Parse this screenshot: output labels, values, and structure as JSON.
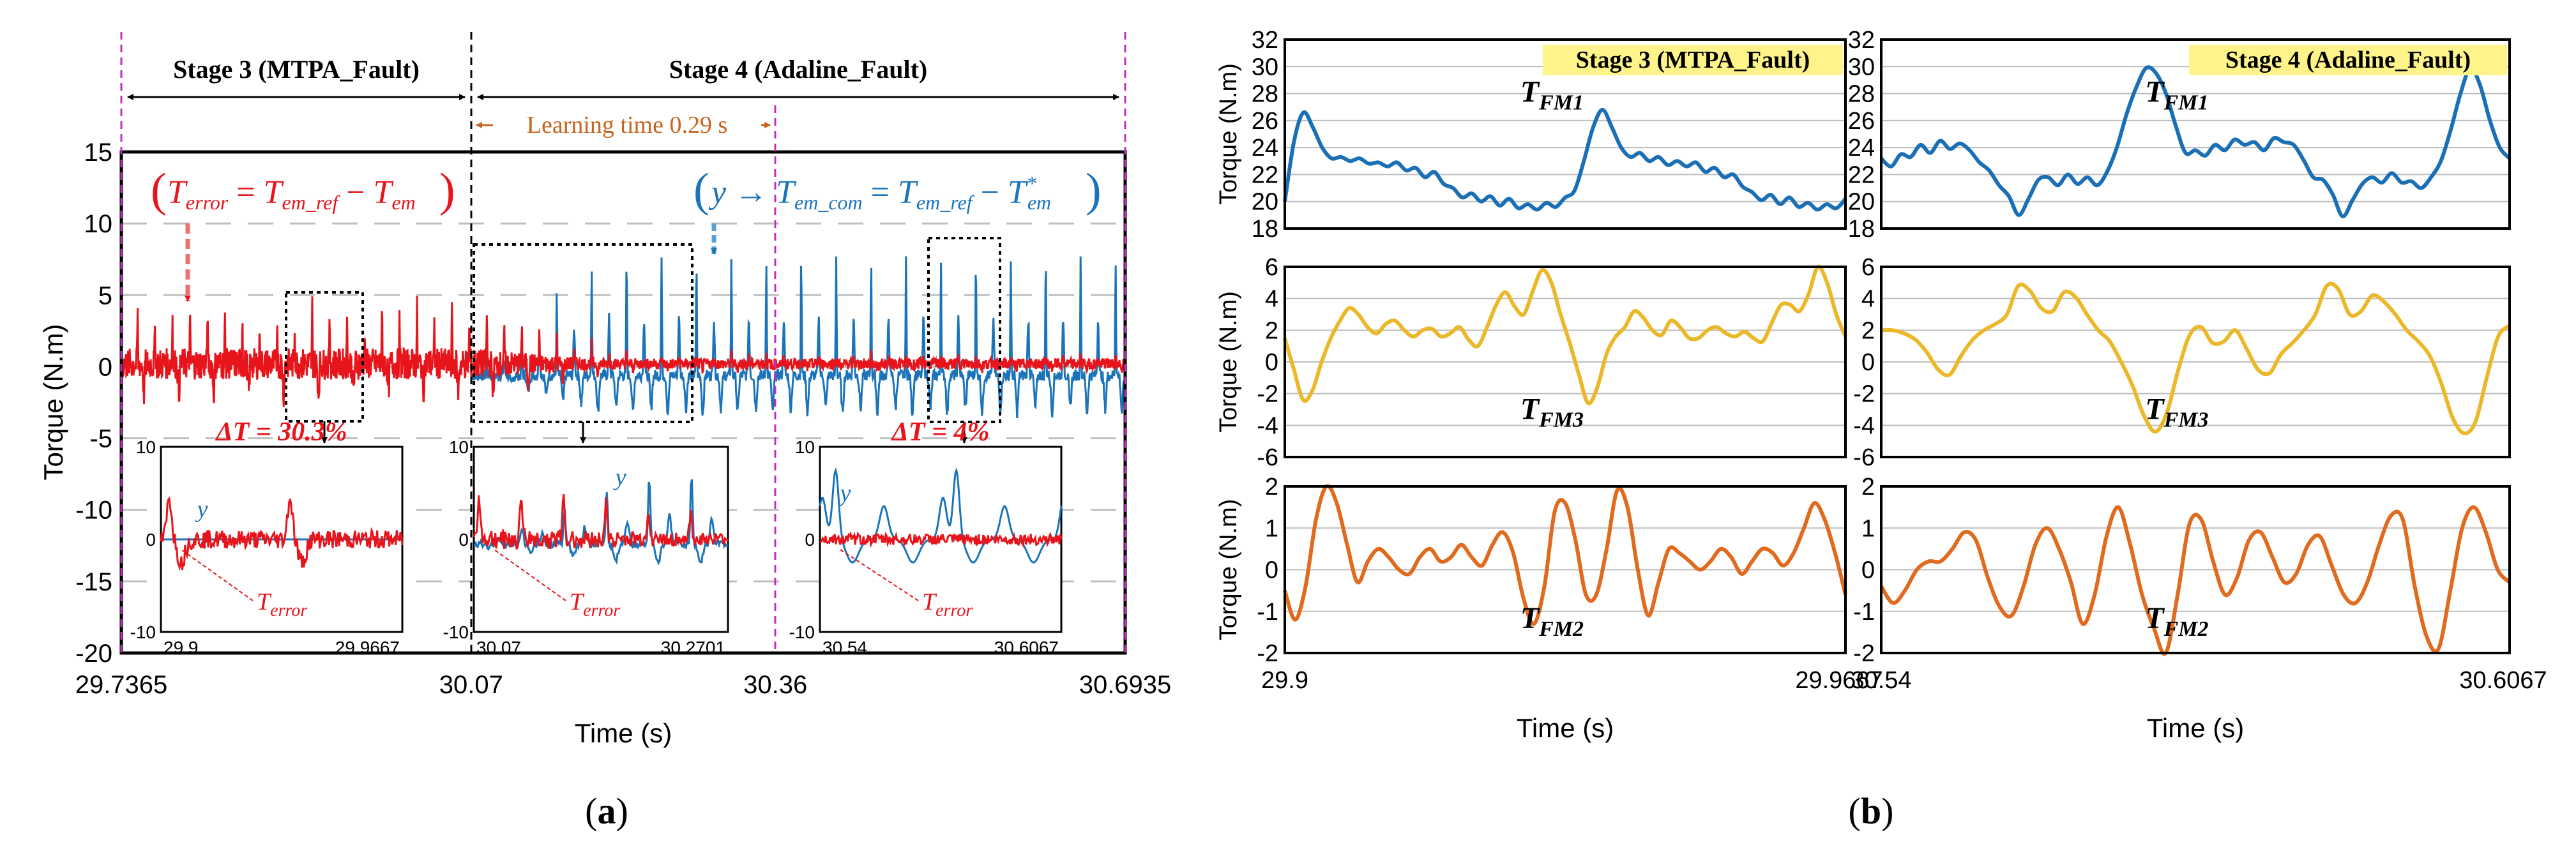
{
  "panel_labels": {
    "a": "(a)",
    "b": "(b)"
  },
  "colors": {
    "error": "#e8141b",
    "adaline": "#1b74b9",
    "fm1": "#1b6fb5",
    "fm3": "#ebb82a",
    "fm2": "#e06a1e",
    "stage_line": "#c030c0",
    "learning": "#c8641e",
    "highlight": "#fef48a"
  },
  "chart_data": [
    {
      "type": "line",
      "panel": "a",
      "ylabel": "Torque (N.m)",
      "xlabel": "Time (s)",
      "ylim": [
        -20,
        15
      ],
      "yticks": [
        "15",
        "10",
        "5",
        "0",
        "-5",
        "-10",
        "-15",
        "-20"
      ],
      "xticks": [
        {
          "t": 29.7365,
          "label": "29.7365"
        },
        {
          "t": 30.07,
          "label": "30.07"
        },
        {
          "t": 30.36,
          "label": "30.36"
        },
        {
          "t": 30.6935,
          "label": "30.6935"
        }
      ],
      "xlim": [
        29.7365,
        30.6935
      ],
      "stages": [
        {
          "label": "Stage 3 (MTPA_Fault)",
          "start": 29.7365,
          "end": 30.07
        },
        {
          "label": "Stage 4 (Adaline_Fault)",
          "start": 30.07,
          "end": 30.6935
        }
      ],
      "learning": {
        "label": "Learning time 0.29 s",
        "start": 30.07,
        "end": 30.36
      },
      "series": [
        {
          "name": "T_error",
          "peak": 4.7,
          "trough": -2.5,
          "period_s": 0.0333
        },
        {
          "name": "y",
          "peak": 8.4,
          "trough": -3.5,
          "period_s": 0.0333
        }
      ],
      "equation_error": {
        "lhs": "T",
        "lhs_sub": "error",
        "mid": "T",
        "mid_sub": "em_ref",
        "rhs": "T",
        "rhs_sub": "em"
      },
      "equation_y": {
        "y": "y",
        "a": "T",
        "a_sub": "em_com",
        "b": "T",
        "b_sub": "em_ref",
        "c": "T",
        "c_sub": "em",
        "c_sup": "*"
      },
      "insets": [
        {
          "x_range": [
            "29.9",
            "29.9667"
          ],
          "ylim": [
            "10",
            "0",
            "-10"
          ],
          "delta": "ΔT = 30.3%",
          "label_y": "y",
          "label_err": "T",
          "label_err_sub": "error"
        },
        {
          "x_range": [
            "30.07",
            "30.2701"
          ],
          "ylim": [
            "10",
            "0",
            "-10"
          ],
          "label_y": "y",
          "label_err": "T",
          "label_err_sub": "error"
        },
        {
          "x_range": [
            "30.54",
            "30.6067"
          ],
          "ylim": [
            "10",
            "0",
            "-10"
          ],
          "delta": "ΔT = 4%",
          "label_y": "y",
          "label_err": "T",
          "label_err_sub": "error"
        }
      ]
    },
    {
      "type": "line",
      "panel": "b",
      "xlabel": "Time (s)",
      "columns": [
        {
          "title": "Stage 3 (MTPA_Fault)",
          "x_start": "29.9",
          "x_end": "29.9667"
        },
        {
          "title": "Stage 4 (Adaline_Fault)",
          "x_start": "30.54",
          "x_end": "30.6067"
        }
      ],
      "rows": [
        {
          "name": "T",
          "sub": "FM1",
          "ylabel": "Torque (N.m)",
          "ylim": [
            18,
            32
          ],
          "yticks": [
            "32",
            "30",
            "28",
            "26",
            "24",
            "22",
            "20",
            "18"
          ]
        },
        {
          "name": "T",
          "sub": "FM3",
          "ylabel": "Torque (N.m)",
          "ylim": [
            -6,
            6
          ],
          "yticks": [
            "6",
            "4",
            "2",
            "0",
            "-2",
            "-4",
            "-6"
          ]
        },
        {
          "name": "T",
          "sub": "FM2",
          "ylabel": "Torque (N.m)",
          "ylim": [
            -2,
            2
          ],
          "yticks": [
            "2",
            "1",
            "0",
            "-1",
            "-2"
          ]
        }
      ],
      "series": {
        "stage3": {
          "FM1": [
            20,
            24.5,
            26.6,
            25.5,
            24,
            23.2,
            23.3,
            23,
            23.2,
            22.8,
            22.9,
            22.6,
            22.9,
            22.3,
            22.5,
            21.8,
            22.2,
            21.3,
            21,
            20.3,
            20.6,
            20,
            20.4,
            19.7,
            20.2,
            19.5,
            19.8,
            19.4,
            19.9,
            19.6,
            20.3,
            20.8,
            23,
            25.5,
            26.8,
            25.5,
            24,
            23.3,
            23.6,
            23,
            23.3,
            22.7,
            23,
            22.6,
            22.9,
            22.2,
            22.5,
            21.8,
            22,
            21.1,
            20.7,
            20.1,
            20.5,
            19.8,
            20.3,
            19.6,
            19.9,
            19.4,
            19.8,
            19.5,
            20.2
          ],
          "FM3": [
            1.5,
            -0.5,
            -2.4,
            -1.8,
            0,
            1.5,
            2.6,
            3.4,
            3,
            2.2,
            1.8,
            2.4,
            2.6,
            2,
            1.6,
            2,
            2.1,
            1.6,
            1.8,
            2.2,
            1.4,
            1,
            2.2,
            3.6,
            4.4,
            3.5,
            3,
            4.5,
            5.8,
            5,
            3,
            1.2,
            -0.8,
            -2.6,
            -1.6,
            0.5,
            1.6,
            2.2,
            3.2,
            2.8,
            2,
            1.7,
            2.6,
            2.2,
            1.5,
            1.5,
            2,
            2.2,
            1.8,
            1.6,
            1.9,
            1.5,
            1.3,
            2.5,
            3.6,
            3.6,
            3.2,
            4.3,
            6,
            5,
            3,
            1.6
          ],
          "FM2": [
            -0.5,
            -1.2,
            -0.4,
            1.2,
            2,
            1.6,
            0.6,
            -0.3,
            0.2,
            0.5,
            0.3,
            0,
            -0.1,
            0.3,
            0.5,
            0.2,
            0.3,
            0.6,
            0.3,
            0.1,
            0.6,
            0.9,
            0.4,
            -0.7,
            -1.3,
            -0.4,
            1.4,
            1.6,
            0.7,
            -0.6,
            -0.6,
            0.5,
            1.9,
            1.5,
            0,
            -1.1,
            -0.3,
            0.5,
            0.4,
            0.2,
            0,
            0.2,
            0.5,
            0.3,
            -0.1,
            0.2,
            0.5,
            0.4,
            0.1,
            0.4,
            1,
            1.6,
            1.2,
            0.4,
            -0.6
          ]
        },
        "stage4": {
          "FM1": [
            23.2,
            22.6,
            23.5,
            23.3,
            24.2,
            23.6,
            24.5,
            23.9,
            24.3,
            23.8,
            22.9,
            22.3,
            21.2,
            20.4,
            19,
            20.2,
            21.6,
            21.8,
            21.2,
            22,
            21.3,
            21.8,
            21.2,
            22.2,
            24,
            26.5,
            28.5,
            29.9,
            29.5,
            28,
            25.6,
            23.6,
            23.8,
            23.4,
            24.2,
            23.8,
            24.6,
            24.2,
            24.4,
            23.8,
            24.7,
            24.4,
            24.2,
            23.1,
            21.8,
            21.6,
            20.5,
            18.9,
            20.1,
            21.3,
            21.8,
            21.4,
            22.1,
            21.4,
            21.5,
            21,
            21.8,
            23,
            25.3,
            28,
            29.9,
            28.6,
            26,
            24,
            23.2
          ],
          "FM3": [
            2,
            2,
            1.8,
            1.4,
            0.6,
            -0.5,
            -0.8,
            0.4,
            1.4,
            2,
            2.4,
            3,
            4.8,
            4.5,
            3.4,
            3.2,
            4.4,
            4.1,
            3,
            2,
            1.3,
            0,
            -1.5,
            -3.4,
            -4.4,
            -3.2,
            -0.5,
            1.7,
            2.2,
            1.2,
            1.3,
            2,
            0.8,
            -0.5,
            -0.7,
            0.5,
            1.2,
            2,
            3,
            4.8,
            4.6,
            3,
            3.2,
            4.2,
            3.8,
            3,
            2,
            1.3,
            0.4,
            -1.3,
            -3.5,
            -4.5,
            -3.8,
            -1,
            1.6,
            2.3
          ],
          "FM3_dummy": [],
          "FM2": [
            -0.4,
            -0.8,
            -0.5,
            0,
            0.2,
            0.2,
            0.5,
            0.9,
            0.7,
            -0.2,
            -0.9,
            -1.1,
            -0.4,
            0.6,
            1,
            0.5,
            -0.3,
            -1.3,
            -0.6,
            0.8,
            1.5,
            0.6,
            -0.6,
            -1.4,
            -2,
            -0.6,
            1.1,
            1.2,
            0.2,
            -0.6,
            -0.2,
            0.7,
            0.9,
            0.3,
            -0.3,
            -0.1,
            0.6,
            0.8,
            0.1,
            -0.6,
            -0.8,
            -0.3,
            0.6,
            1.3,
            1.2,
            -0.4,
            -1.6,
            -1.9,
            -0.5,
            1,
            1.5,
            0.9,
            0,
            -0.3
          ]
        }
      }
    }
  ]
}
